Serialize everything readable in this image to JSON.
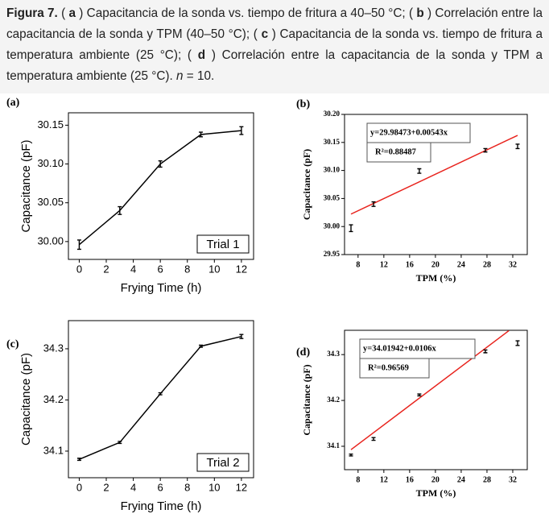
{
  "caption": {
    "parts": [
      {
        "text": "Figura 7.",
        "style": "bold"
      },
      {
        "text": " ( ",
        "style": "normal"
      },
      {
        "text": "a",
        "style": "bold"
      },
      {
        "text": " ) Capacitancia de la sonda vs. tiempo de fritura a 40–50 °C; ( ",
        "style": "normal"
      },
      {
        "text": "b",
        "style": "bold"
      },
      {
        "text": " ) Correlación entre la capacitancia de la sonda y TPM (40–50 °C); ( ",
        "style": "normal"
      },
      {
        "text": "c",
        "style": "bold"
      },
      {
        "text": " ) Capacitancia de la sonda vs. tiempo de fritura a temperatura ambiente (25 °C); ( ",
        "style": "normal"
      },
      {
        "text": "d",
        "style": "bold"
      },
      {
        "text": " ) Correlación entre la capacitancia de la sonda y TPM a temperatura ambiente (25 °C). ",
        "style": "normal"
      },
      {
        "text": "n",
        "style": "italic"
      },
      {
        "text": " = 10.",
        "style": "normal"
      }
    ]
  },
  "chart_data": [
    {
      "type": "line",
      "panel_label": "(a)",
      "x_label": "Frying Time (h)",
      "y_label": "Capacitance (pF)",
      "x": [
        0,
        3,
        6,
        9,
        12
      ],
      "values": [
        29.996,
        30.04,
        30.1,
        30.138,
        30.143
      ],
      "errors": [
        0.006,
        0.005,
        0.004,
        0.003,
        0.005
      ],
      "color": "#000000",
      "legend_text": "Trial 1",
      "xlim": [
        -0.8,
        12.9
      ],
      "xticks": [
        0,
        2,
        4,
        6,
        8,
        10,
        12
      ],
      "ylim": [
        29.977,
        30.166
      ],
      "yticks": [
        {
          "value": 30,
          "label": "30.00"
        },
        30.05,
        {
          "value": 30.1,
          "label": "30.10"
        },
        30.15
      ]
    },
    {
      "type": "scatter",
      "panel_label": "(b)",
      "x_label": "TPM (%)",
      "y_label": "Capacitance (pF)",
      "x": [
        6.9,
        10.4,
        17.5,
        27.75,
        32.75
      ],
      "values": [
        29.997,
        30.04,
        30.099,
        30.136,
        30.143
      ],
      "errors": [
        0.006,
        0.004,
        0.004,
        0.003,
        0.004
      ],
      "color": "#000000",
      "fit": {
        "intercept": 29.98473,
        "slope": 0.00543,
        "xrange": [
          6.9,
          32.75
        ],
        "color": "#e8231d",
        "equation": "y=29.98473+0.00543x",
        "r2": "R²=0.88487"
      },
      "xlim": [
        5.9,
        34.25
      ],
      "xticks": [
        8,
        12,
        16,
        20,
        24,
        28,
        32
      ],
      "ylim": [
        29.95,
        30.2
      ],
      "yticks": [
        29.95,
        {
          "value": 30,
          "label": "30.00"
        },
        30.05,
        {
          "value": 30.1,
          "label": "30.10"
        },
        30.15,
        {
          "value": 30.2,
          "label": "30.20"
        }
      ]
    },
    {
      "type": "line",
      "panel_label": "(c)",
      "x_label": "Frying Time (h)",
      "y_label": "Capacitance (pF)",
      "x": [
        0,
        3,
        6,
        9,
        12
      ],
      "values": [
        34.084,
        34.117,
        34.212,
        34.305,
        34.324
      ],
      "errors": [
        0.002,
        0.002,
        0.002,
        0.002,
        0.004
      ],
      "color": "#000000",
      "legend_text": "Trial 2",
      "xlim": [
        -0.8,
        12.9
      ],
      "xticks": [
        0,
        2,
        4,
        6,
        8,
        10,
        12
      ],
      "ylim": [
        34.048,
        34.355
      ],
      "yticks": [
        34.1,
        34.2,
        34.3
      ]
    },
    {
      "type": "scatter",
      "panel_label": "(d)",
      "x_label": "TPM (%)",
      "y_label": "Capacitance (pF)",
      "x": [
        6.9,
        10.4,
        17.5,
        27.75,
        32.75
      ],
      "values": [
        34.081,
        34.116,
        34.212,
        34.307,
        34.325
      ],
      "errors": [
        0.002,
        0.003,
        0.002,
        0.003,
        0.005
      ],
      "color": "#000000",
      "fit": {
        "intercept": 34.01942,
        "slope": 0.0106,
        "xrange": [
          6.9,
          31.4
        ],
        "color": "#e8231d",
        "equation": "y=34.01942+0.0106x",
        "r2": "R²=0.96569"
      },
      "xlim": [
        5.9,
        34.25
      ],
      "xticks": [
        8,
        12,
        16,
        20,
        24,
        28,
        32
      ],
      "ylim": [
        34.049,
        34.353
      ],
      "yticks": [
        34.1,
        34.2,
        34.3
      ]
    }
  ]
}
